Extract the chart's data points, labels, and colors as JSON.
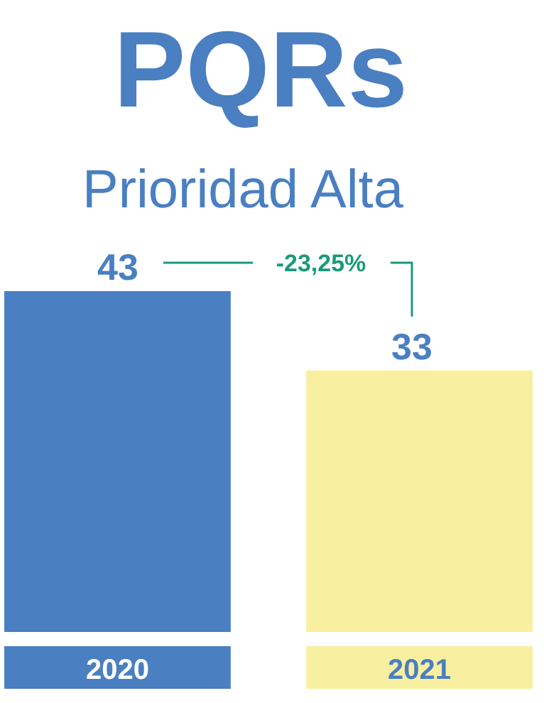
{
  "chart_data": {
    "type": "bar",
    "title": "PQRs",
    "subtitle": "Prioridad Alta",
    "categories": [
      "2020",
      "2021"
    ],
    "values": [
      43,
      33
    ],
    "colors": [
      "#4a7fc1",
      "#f8f0a0"
    ],
    "data_labels": true,
    "annotations": [
      "-23,25%"
    ]
  }
}
